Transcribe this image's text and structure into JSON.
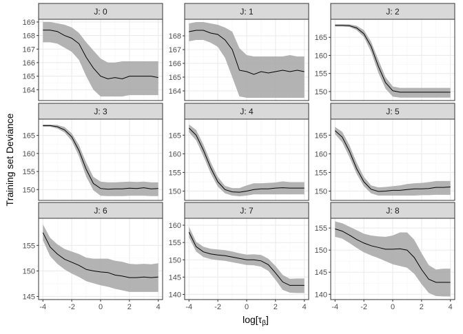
{
  "chart_data": {
    "type": "line",
    "layout": "facet-grid 3x3, independent y scales, shared x scale",
    "xlabel": "log[τβ]",
    "xlabel_main": "log[τ",
    "xlabel_sub": "β",
    "xlabel_close": "]",
    "ylabel": "Training set Deviance",
    "xlim": [
      -4.3,
      4.3
    ],
    "x_ticks": [
      -4,
      -2,
      0,
      2,
      4
    ],
    "x_tick_labels": [
      "-4",
      "-2",
      "0",
      "2",
      "4"
    ],
    "grid": true,
    "band": "confidence ribbon (grey)",
    "colors": {
      "line": "#000000",
      "ribbon": "#a6a6a6",
      "strip_bg": "#d9d9d9",
      "panel_border": "#333333",
      "grid_major": "#ebebeb",
      "grid_minor": "#f5f5f5"
    },
    "panels": [
      {
        "label": "J: 0",
        "ylim": [
          163.2,
          169.2
        ],
        "y_ticks": [
          164,
          165,
          166,
          167,
          168,
          169
        ],
        "x": [
          -4,
          -3.5,
          -3,
          -2.5,
          -2,
          -1.5,
          -1,
          -0.5,
          0,
          0.5,
          1,
          1.5,
          2,
          2.5,
          3,
          3.5,
          4
        ],
        "y": [
          168.4,
          168.4,
          168.3,
          168.0,
          167.8,
          167.4,
          166.4,
          165.6,
          165.0,
          164.8,
          164.9,
          164.8,
          165.0,
          165.0,
          165.0,
          165.0,
          164.9
        ],
        "lower": [
          167.5,
          167.5,
          167.4,
          167.1,
          166.8,
          166.2,
          165.0,
          164.0,
          163.5,
          163.5,
          163.5,
          163.5,
          163.6,
          163.6,
          163.6,
          163.6,
          163.6
        ],
        "upper": [
          169.0,
          169.0,
          168.9,
          168.8,
          168.6,
          168.2,
          167.5,
          166.9,
          166.3,
          166.0,
          166.0,
          166.1,
          166.1,
          166.1,
          166.1,
          166.1,
          166.1
        ]
      },
      {
        "label": "J: 1",
        "ylim": [
          163.3,
          169.2
        ],
        "y_ticks": [
          164,
          165,
          166,
          167,
          168
        ],
        "x": [
          -4,
          -3.5,
          -3,
          -2.5,
          -2,
          -1.5,
          -1,
          -0.5,
          0,
          0.5,
          1,
          1.5,
          2,
          2.5,
          3,
          3.5,
          4
        ],
        "y": [
          168.3,
          168.4,
          168.4,
          168.2,
          168.1,
          167.7,
          167.0,
          165.5,
          165.4,
          165.2,
          165.4,
          165.3,
          165.4,
          165.5,
          165.4,
          165.5,
          165.4
        ],
        "lower": [
          167.6,
          167.7,
          167.7,
          167.5,
          167.2,
          166.4,
          165.0,
          163.6,
          163.5,
          163.5,
          163.5,
          163.5,
          163.5,
          163.5,
          163.5,
          163.5,
          163.5
        ],
        "upper": [
          168.9,
          169.0,
          169.0,
          168.9,
          168.8,
          168.6,
          168.3,
          167.1,
          166.6,
          166.5,
          166.5,
          166.5,
          166.5,
          166.5,
          166.6,
          166.5,
          166.5
        ]
      },
      {
        "label": "J: 2",
        "ylim": [
          147.5,
          170
        ],
        "y_ticks": [
          150,
          155,
          160,
          165
        ],
        "x": [
          -4,
          -3.5,
          -3,
          -2.5,
          -2,
          -1.5,
          -1,
          -0.5,
          0,
          0.5,
          1,
          1.5,
          2,
          2.5,
          3,
          3.5,
          4
        ],
        "y": [
          168.3,
          168.3,
          168.2,
          167.6,
          166.0,
          162.5,
          157.0,
          152.5,
          150.2,
          149.8,
          149.8,
          149.8,
          149.8,
          149.8,
          149.8,
          149.8,
          149.8
        ],
        "lower": [
          168.0,
          168.0,
          167.9,
          167.0,
          165.1,
          161.0,
          155.2,
          150.8,
          148.6,
          148.3,
          148.3,
          148.3,
          148.3,
          148.3,
          148.3,
          148.3,
          148.3
        ],
        "upper": [
          168.6,
          168.6,
          168.6,
          168.2,
          167.0,
          163.8,
          158.8,
          154.0,
          151.4,
          151.0,
          151.0,
          151.0,
          151.0,
          151.0,
          151.0,
          151.0,
          151.0
        ]
      },
      {
        "label": "J: 3",
        "ylim": [
          147,
          169.5
        ],
        "y_ticks": [
          150,
          155,
          160,
          165
        ],
        "x": [
          -4,
          -3.5,
          -3,
          -2.5,
          -2,
          -1.5,
          -1,
          -0.5,
          0,
          0.5,
          1,
          1.5,
          2,
          2.5,
          3,
          3.5,
          4
        ],
        "y": [
          167.7,
          167.7,
          167.4,
          166.5,
          164.6,
          160.8,
          155.6,
          151.7,
          150.3,
          150.1,
          150.2,
          150.2,
          150.4,
          150.3,
          150.5,
          150.2,
          150.3
        ],
        "lower": [
          167.4,
          167.4,
          166.9,
          165.8,
          163.5,
          159.2,
          153.6,
          149.8,
          148.3,
          148.2,
          148.2,
          148.2,
          148.3,
          148.3,
          148.3,
          148.2,
          148.2
        ],
        "upper": [
          168.0,
          168.0,
          167.9,
          167.3,
          165.6,
          162.3,
          157.5,
          153.5,
          152.2,
          152.0,
          152.0,
          152.1,
          152.2,
          152.1,
          152.2,
          152.0,
          152.0
        ]
      },
      {
        "label": "J: 4",
        "ylim": [
          147.5,
          169.3
        ],
        "y_ticks": [
          150,
          155,
          160,
          165
        ],
        "x": [
          -4,
          -3.5,
          -3,
          -2.5,
          -2,
          -1.5,
          -1,
          -0.5,
          0,
          0.5,
          1,
          1.5,
          2,
          2.5,
          3,
          3.5,
          4
        ],
        "y": [
          166.9,
          165.0,
          161.0,
          156.3,
          152.5,
          150.4,
          149.8,
          149.7,
          150.0,
          150.4,
          150.6,
          150.6,
          150.8,
          150.9,
          150.8,
          150.8,
          150.8
        ],
        "lower": [
          165.8,
          163.6,
          159.4,
          154.8,
          151.2,
          149.4,
          148.8,
          148.6,
          148.8,
          149.1,
          149.1,
          149.1,
          149.1,
          149.1,
          149.1,
          149.1,
          149.1
        ],
        "upper": [
          167.9,
          166.4,
          162.5,
          157.8,
          153.8,
          151.4,
          150.8,
          150.8,
          151.5,
          152.1,
          152.1,
          152.2,
          152.3,
          152.6,
          152.4,
          152.4,
          152.4
        ]
      },
      {
        "label": "J: 5",
        "ylim": [
          147.5,
          169.3
        ],
        "y_ticks": [
          150,
          155,
          160,
          165
        ],
        "x": [
          -4,
          -3.5,
          -3,
          -2.5,
          -2,
          -1.5,
          -1,
          -0.5,
          0,
          0.5,
          1,
          1.5,
          2,
          2.5,
          3,
          3.5,
          4
        ],
        "y": [
          166.2,
          164.5,
          160.7,
          156.0,
          152.5,
          150.5,
          149.9,
          150.0,
          150.2,
          150.2,
          150.4,
          150.6,
          150.6,
          150.7,
          151.0,
          151.0,
          151.1
        ],
        "lower": [
          165.3,
          163.1,
          159.1,
          154.6,
          151.3,
          149.4,
          148.8,
          148.8,
          148.8,
          148.8,
          148.8,
          148.8,
          148.9,
          148.9,
          149.0,
          149.0,
          149.0
        ],
        "upper": [
          167.2,
          165.9,
          162.3,
          157.6,
          153.8,
          151.5,
          151.0,
          151.1,
          151.3,
          151.5,
          151.9,
          152.1,
          152.2,
          152.4,
          152.7,
          152.7,
          152.7
        ]
      },
      {
        "label": "J: 6",
        "ylim": [
          144.4,
          160.3
        ],
        "y_ticks": [
          145,
          150,
          155
        ],
        "x": [
          -4,
          -3.5,
          -3,
          -2.5,
          -2,
          -1.5,
          -1,
          -0.5,
          0,
          0.5,
          1,
          1.5,
          2,
          2.5,
          3,
          3.5,
          4
        ],
        "y": [
          157.5,
          154.7,
          153.3,
          152.3,
          151.7,
          151.1,
          150.3,
          150.0,
          149.8,
          149.7,
          149.2,
          149.0,
          148.7,
          148.7,
          148.8,
          148.7,
          148.8
        ],
        "lower": [
          156.0,
          152.9,
          151.4,
          150.3,
          149.5,
          148.8,
          148.0,
          147.6,
          147.2,
          146.9,
          146.5,
          146.2,
          145.9,
          145.9,
          145.9,
          145.9,
          145.9
        ],
        "upper": [
          159.1,
          156.5,
          155.2,
          154.3,
          153.8,
          153.3,
          152.6,
          152.4,
          152.4,
          152.4,
          152.0,
          151.8,
          151.4,
          151.3,
          151.4,
          151.3,
          151.5
        ]
      },
      {
        "label": "J: 7",
        "ylim": [
          138.5,
          162
        ],
        "y_ticks": [
          140,
          145,
          150,
          155,
          160
        ],
        "x": [
          -4,
          -3.5,
          -3,
          -2.5,
          -2,
          -1.5,
          -1,
          -0.5,
          0,
          0.5,
          1,
          1.5,
          2,
          2.5,
          3,
          3.5,
          4
        ],
        "y": [
          158.0,
          153.8,
          152.3,
          151.7,
          151.4,
          151.2,
          150.8,
          150.4,
          150.0,
          150.0,
          149.7,
          148.6,
          146.2,
          143.6,
          142.6,
          142.6,
          142.6
        ],
        "lower": [
          156.5,
          152.4,
          150.8,
          150.2,
          149.9,
          149.7,
          149.3,
          148.9,
          148.5,
          148.4,
          148.0,
          146.8,
          144.2,
          141.3,
          140.5,
          140.4,
          140.4
        ],
        "upper": [
          159.6,
          155.2,
          153.8,
          153.2,
          153.0,
          152.8,
          152.4,
          151.9,
          151.5,
          151.6,
          151.4,
          150.3,
          148.2,
          145.6,
          144.5,
          144.6,
          144.6
        ]
      },
      {
        "label": "J: 8",
        "ylim": [
          138.8,
          157.2
        ],
        "y_ticks": [
          140,
          145,
          150,
          155
        ],
        "x": [
          -4,
          -3.5,
          -3,
          -2.5,
          -2,
          -1.5,
          -1,
          -0.5,
          0,
          0.5,
          1,
          1.5,
          2,
          2.5,
          3,
          3.5,
          4
        ],
        "y": [
          154.8,
          154.3,
          153.4,
          152.4,
          151.6,
          151.0,
          150.6,
          150.2,
          150.2,
          150.3,
          150.0,
          148.3,
          145.6,
          143.4,
          142.7,
          142.7,
          142.7
        ],
        "lower": [
          153.0,
          152.6,
          151.6,
          150.5,
          149.5,
          148.8,
          148.2,
          147.5,
          146.8,
          146.4,
          146.0,
          144.6,
          142.3,
          140.3,
          139.6,
          139.5,
          139.5
        ],
        "upper": [
          156.5,
          156.1,
          155.3,
          154.5,
          153.7,
          153.3,
          153.1,
          153.0,
          153.3,
          154.0,
          154.0,
          152.3,
          149.3,
          146.6,
          145.6,
          145.8,
          145.8
        ]
      }
    ]
  }
}
